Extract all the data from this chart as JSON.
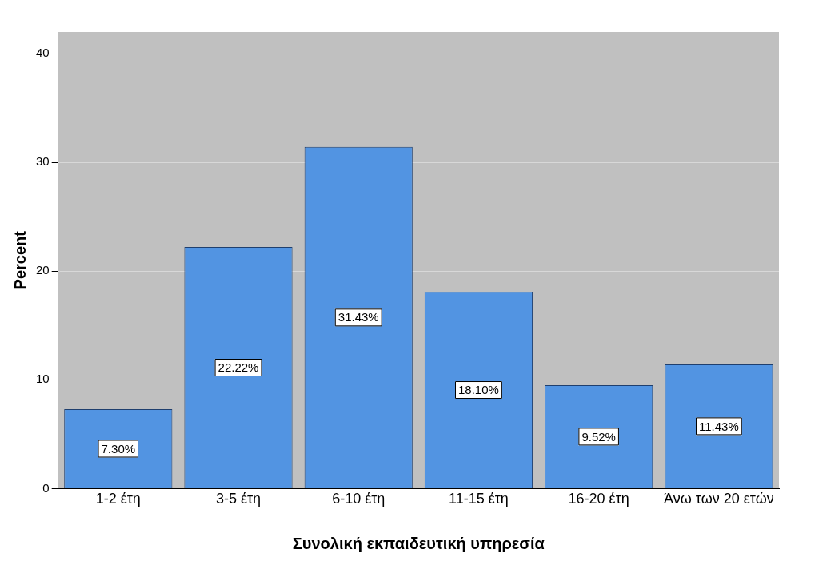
{
  "chart_data": {
    "type": "bar",
    "xlabel": "Συνολική εκπαιδευτική υπηρεσία",
    "ylabel": "Percent",
    "categories": [
      "1-2 έτη",
      "3-5 έτη",
      "6-10 έτη",
      "11-15 έτη",
      "16-20 έτη",
      "Άνω των 20 ετών"
    ],
    "values": [
      7.3,
      22.22,
      31.43,
      18.1,
      9.52,
      11.43
    ],
    "value_labels": [
      "7.30%",
      "22.22%",
      "31.43%",
      "18.10%",
      "9.52%",
      "11.43%"
    ],
    "color": "#5294e2",
    "ylim": [
      0,
      42
    ],
    "yticks": [
      0,
      10,
      20,
      30,
      40
    ],
    "grid": "y",
    "legend": false
  }
}
